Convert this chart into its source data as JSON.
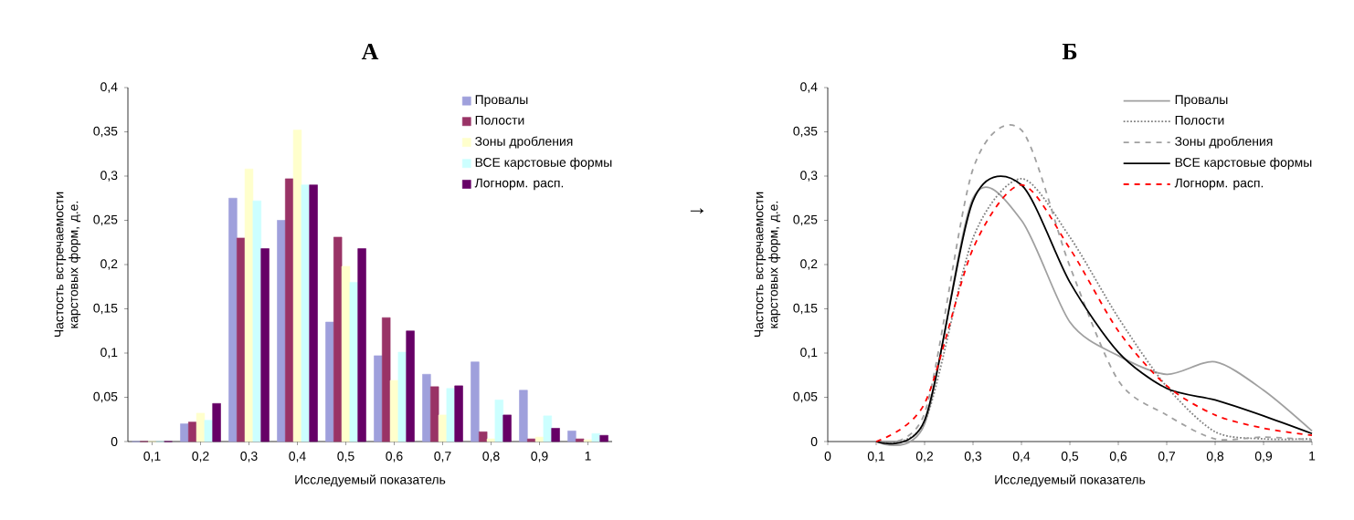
{
  "chart_data": [
    {
      "type": "bar",
      "title": "А",
      "xlabel": "Исследуемый показатель",
      "ylabel": "Частость встречаемости карстовых форм, д.е.",
      "categories": [
        "0,1",
        "0,2",
        "0,3",
        "0,4",
        "0,5",
        "0,6",
        "0,7",
        "0,8",
        "0,9",
        "1"
      ],
      "series": [
        {
          "name": "Провалы",
          "color": "#9fa0dc",
          "values": [
            0,
            0.02,
            0.275,
            0.25,
            0.135,
            0.097,
            0.076,
            0.09,
            0.058,
            0.012
          ]
        },
        {
          "name": "Полости",
          "color": "#993366",
          "values": [
            0,
            0.022,
            0.23,
            0.297,
            0.231,
            0.14,
            0.062,
            0.011,
            0.003,
            0.003
          ]
        },
        {
          "name": "Зоны дробления",
          "color": "#ffffcc",
          "values": [
            0,
            0.032,
            0.308,
            0.352,
            0.198,
            0.069,
            0.03,
            0.003,
            0.005,
            0.002
          ]
        },
        {
          "name": "ВСЕ карстовые формы",
          "color": "#ccffff",
          "values": [
            0,
            0.024,
            0.272,
            0.29,
            0.18,
            0.101,
            0.06,
            0.047,
            0.029,
            0.009
          ]
        },
        {
          "name": "Логнорм. расп.",
          "color": "#660066",
          "values": [
            0,
            0.043,
            0.218,
            0.29,
            0.218,
            0.125,
            0.063,
            0.03,
            0.015,
            0.007
          ]
        }
      ],
      "ylim": [
        0,
        0.4
      ],
      "yticks": [
        0,
        {
          "value": 0.05,
          "label": "0,05"
        },
        {
          "value": 0.1,
          "label": "0,1"
        },
        {
          "value": 0.15,
          "label": "0,15"
        },
        {
          "value": 0.2,
          "label": "0,2"
        },
        {
          "value": 0.25,
          "label": "0,25"
        },
        {
          "value": 0.3,
          "label": "0,3"
        },
        {
          "value": 0.35,
          "label": "0,35"
        },
        {
          "value": 0.4,
          "label": "0,4"
        }
      ],
      "legend": "top right"
    },
    {
      "type": "line",
      "title": "Б",
      "xlabel": "Исследуемый показатель",
      "ylabel": "Частость встречаемости карстовых форм, д.е.",
      "annotations": [
        "→"
      ],
      "x": [
        0.1,
        0.2,
        0.3,
        0.4,
        0.5,
        0.6,
        0.7,
        0.8,
        0.9,
        1
      ],
      "series": [
        {
          "name": "Провалы",
          "color": "#a0a0a0",
          "line_style": "solid",
          "values": [
            0,
            0.02,
            0.275,
            0.25,
            0.135,
            0.097,
            0.076,
            0.09,
            0.058,
            0.012
          ]
        },
        {
          "name": "Полости",
          "color": "#808080",
          "line_style": "dotted",
          "values": [
            0,
            0.022,
            0.23,
            0.297,
            0.231,
            0.14,
            0.062,
            0.011,
            0.003,
            0.003
          ]
        },
        {
          "name": "Зоны дробления",
          "color": "#a0a0a0",
          "line_style": "dashed",
          "values": [
            0,
            0.032,
            0.308,
            0.352,
            0.198,
            0.069,
            0.03,
            0.003,
            0.005,
            0.002
          ]
        },
        {
          "name": "ВСЕ карстовые формы",
          "color": "#000000",
          "line_style": "solid",
          "values": [
            0,
            0.024,
            0.272,
            0.29,
            0.18,
            0.101,
            0.06,
            0.047,
            0.029,
            0.009
          ]
        },
        {
          "name": "Логнорм. расп.",
          "color": "#ff0000",
          "line_style": "dashed",
          "values": [
            0,
            0.043,
            0.218,
            0.29,
            0.218,
            0.125,
            0.063,
            0.03,
            0.015,
            0.007
          ]
        }
      ],
      "xlim": [
        0,
        1
      ],
      "xticks": [
        0,
        {
          "value": 0.1,
          "label": "0,1"
        },
        {
          "value": 0.2,
          "label": "0,2"
        },
        {
          "value": 0.3,
          "label": "0,3"
        },
        {
          "value": 0.4,
          "label": "0,4"
        },
        {
          "value": 0.5,
          "label": "0,5"
        },
        {
          "value": 0.6,
          "label": "0,6"
        },
        {
          "value": 0.7,
          "label": "0,7"
        },
        {
          "value": 0.8,
          "label": "0,8"
        },
        {
          "value": 0.9,
          "label": "0,9"
        },
        1
      ],
      "ylim": [
        0,
        0.4
      ],
      "yticks": [
        0,
        {
          "value": 0.05,
          "label": "0,05"
        },
        {
          "value": 0.1,
          "label": "0,1"
        },
        {
          "value": 0.15,
          "label": "0,15"
        },
        {
          "value": 0.2,
          "label": "0,2"
        },
        {
          "value": 0.25,
          "label": "0,25"
        },
        {
          "value": 0.3,
          "label": "0,3"
        },
        {
          "value": 0.35,
          "label": "0,35"
        },
        {
          "value": 0.4,
          "label": "0,4"
        }
      ],
      "legend": "top right"
    }
  ]
}
